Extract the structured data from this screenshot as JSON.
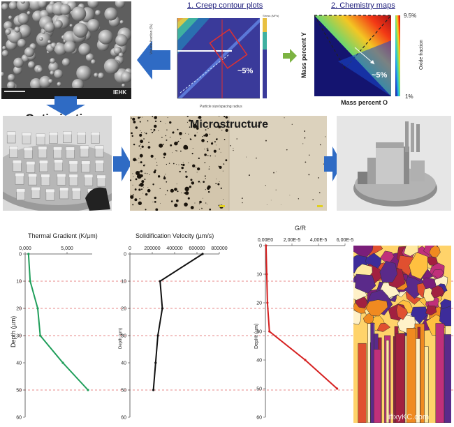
{
  "top": {
    "creep_title": "1. Creep contour plots",
    "chem_title": "2. Chemistry maps",
    "creep_callout": "~5%",
    "chem_callout": "~5%",
    "chem_xlabel": "Mass percent O",
    "chem_ylabel": "Mass percent Y",
    "chem_cbar_top": "9.5%",
    "chem_cbar_bottom": "1%",
    "chem_cbar_label": "Oxide fraction",
    "creep_ylabel": "Volume fraction (%)",
    "creep_xlabel": "Particle size/spacing radius",
    "creep_cbar_label": "Stress (MPa)",
    "sem_scale_text": "IEHK"
  },
  "middle": {
    "optimization_label": "Optimization",
    "microstructure_label": "Microstructure"
  },
  "charts": {
    "depth_axis_label": "Depth (µm)",
    "chart1_title": "Thermal Gradient (K/µm)",
    "chart2_title": "Solidification Velocity (µm/s)",
    "chart3_title": "G/R",
    "chart2_ylabel": "Depth (µm)",
    "chart3_ylabel": "DepHt (µm)"
  },
  "chart_data": [
    {
      "type": "line",
      "title": "Thermal Gradient (K/µm)",
      "ylabel": "Depth (µm)",
      "xlim": [
        0,
        8000
      ],
      "ylim": [
        0,
        60
      ],
      "x_ticks": [
        "0,000",
        "5,000"
      ],
      "x_tick_values": [
        0,
        5000
      ],
      "y_ticks": [
        "0",
        "10",
        "20",
        "30",
        "40",
        "50",
        "60"
      ],
      "color": "#1f9e5a",
      "series": [
        {
          "x": [
            400,
            600,
            1500,
            1800,
            4500,
            7500
          ],
          "y": [
            0,
            10,
            20,
            30,
            40,
            50
          ]
        }
      ]
    },
    {
      "type": "line",
      "title": "Solidification Velocity (µm/s)",
      "ylabel": "Depth (µm)",
      "xlim": [
        0,
        800000
      ],
      "ylim": [
        0,
        60
      ],
      "x_ticks": [
        "0",
        "200000",
        "400000",
        "600000",
        "800000"
      ],
      "x_tick_values": [
        0,
        200000,
        400000,
        600000,
        800000
      ],
      "y_ticks": [
        "0",
        "10",
        "20",
        "30",
        "40",
        "50",
        "60"
      ],
      "color": "#111111",
      "series": [
        {
          "x": [
            650000,
            270000,
            290000,
            250000,
            230000,
            210000
          ],
          "y": [
            0,
            10,
            20,
            30,
            40,
            50
          ]
        }
      ]
    },
    {
      "type": "line",
      "title": "G/R",
      "ylabel": "DepHt (µm)",
      "xlim": [
        0,
        6e-05
      ],
      "ylim": [
        0,
        60
      ],
      "x_ticks": [
        "0,00E0",
        "2,00E-5",
        "4,00E-5",
        "6,00E-5"
      ],
      "x_tick_values": [
        0,
        2e-05,
        4e-05,
        6e-05
      ],
      "y_ticks": [
        "0",
        "10",
        "20",
        "30",
        "40",
        "50",
        "60"
      ],
      "color": "#d62020",
      "series": [
        {
          "x": [
            5e-07,
            1e-06,
            1.5e-06,
            3e-06,
            3e-05,
            5.4e-05
          ],
          "y": [
            0,
            10,
            20,
            30,
            40,
            50
          ]
        }
      ]
    }
  ],
  "ref_lines_depth": [
    10,
    20,
    30,
    50
  ],
  "colors": {
    "arrow_blue": "#2f6bc4",
    "arrow_green": "#7cb342",
    "ref_line": "#e06060"
  },
  "watermark": "ifixyKC.com"
}
